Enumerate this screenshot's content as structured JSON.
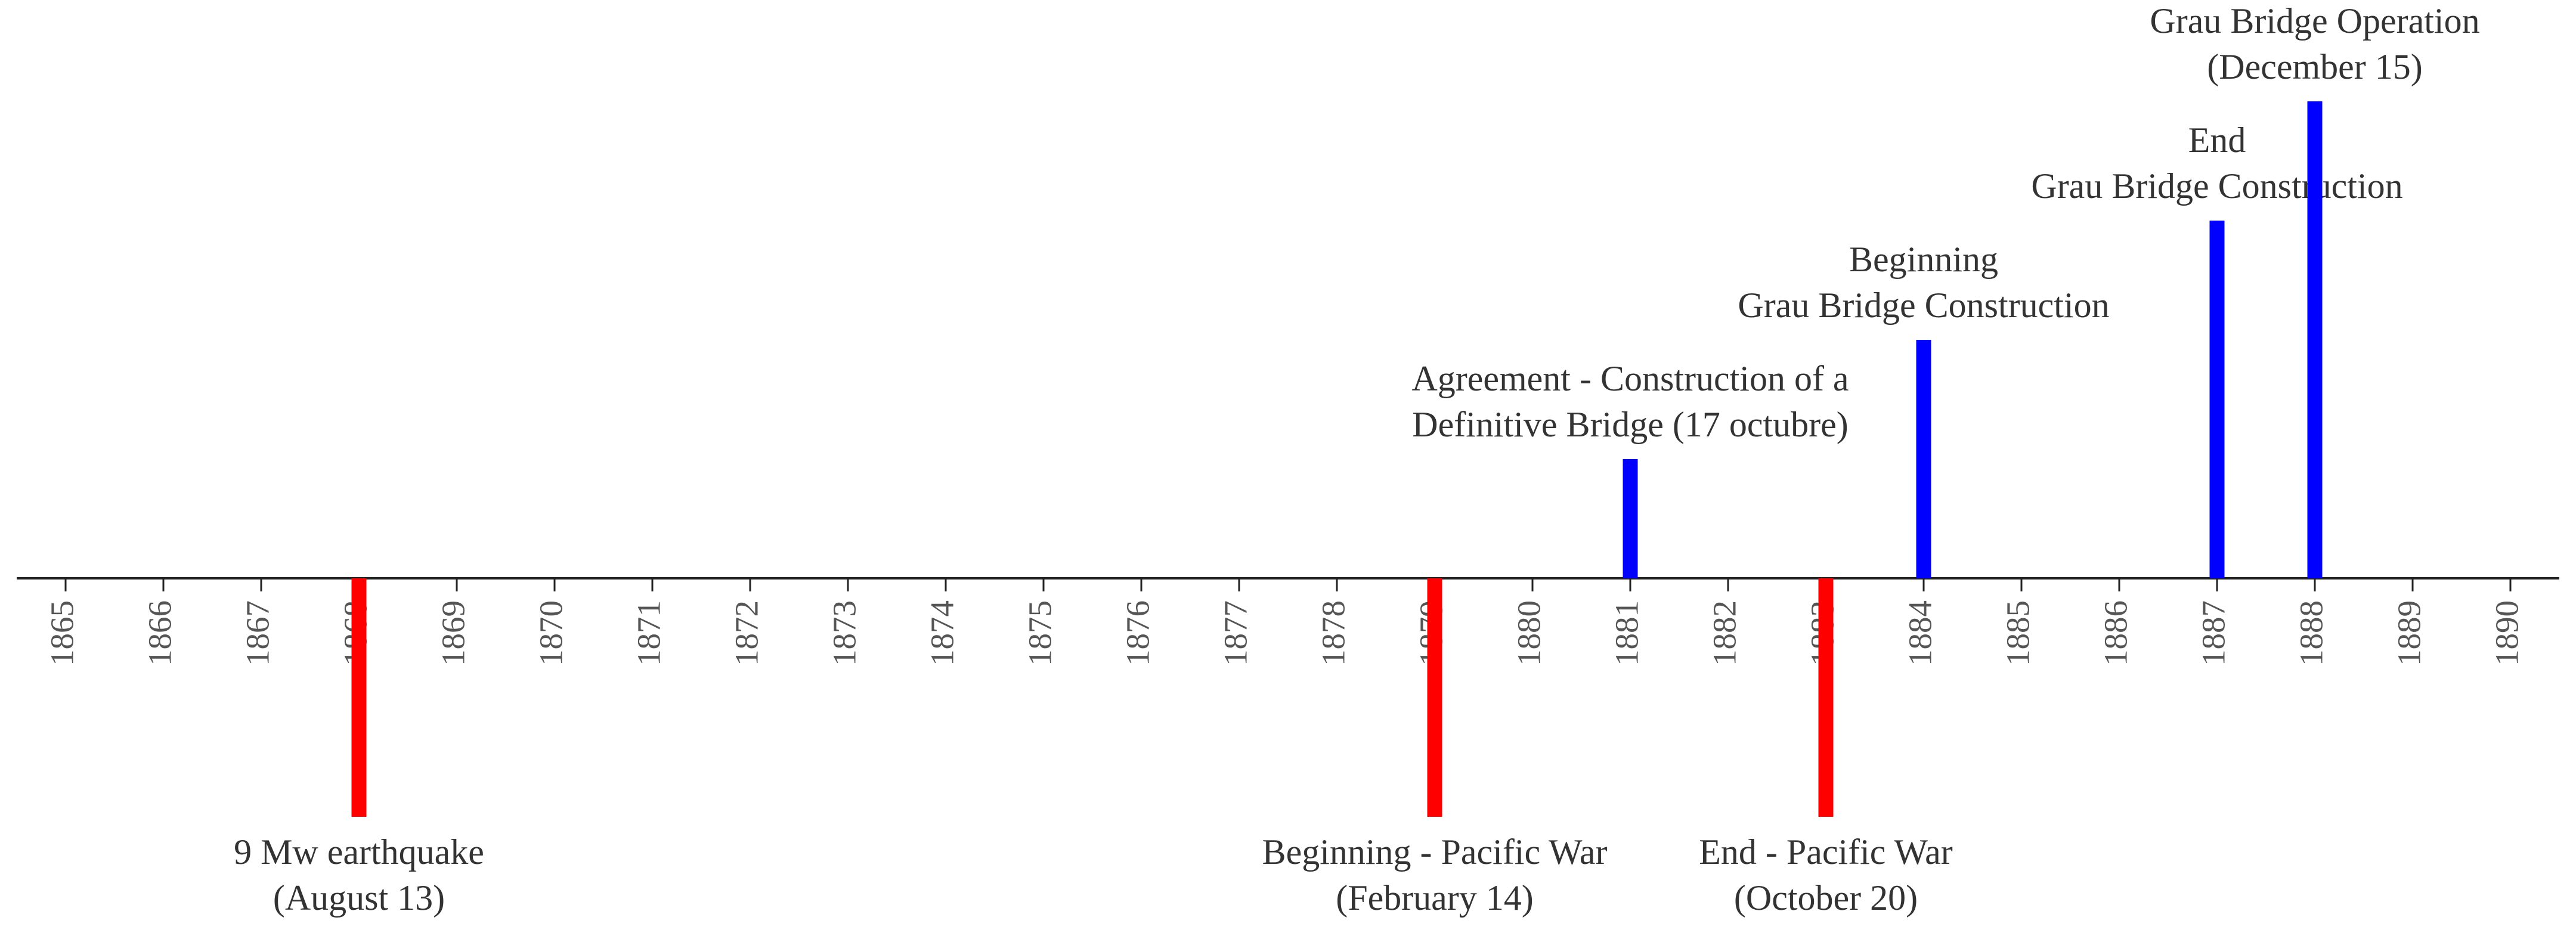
{
  "chart_data": {
    "type": "timeline",
    "xlim": [
      1864.5,
      1890.5
    ],
    "xticks": [
      1865,
      1866,
      1867,
      1868,
      1869,
      1870,
      1871,
      1872,
      1873,
      1874,
      1875,
      1876,
      1877,
      1878,
      1879,
      1880,
      1881,
      1882,
      1883,
      1884,
      1885,
      1886,
      1887,
      1888,
      1889,
      1890
    ],
    "x": [
      1868,
      1879,
      1883,
      1881,
      1884,
      1887,
      1888
    ],
    "values": [
      -2,
      -2,
      -2,
      1,
      2,
      3,
      4
    ],
    "colors": [
      "#ff0000",
      "#ff0000",
      "#ff0000",
      "#0000ff",
      "#0000ff",
      "#0000ff",
      "#0000ff"
    ],
    "labels": [
      [
        "9 Mw earthquake",
        "(August 13)"
      ],
      [
        "Beginning - Pacific War",
        "(February 14)"
      ],
      [
        "End - Pacific War",
        "(October 20)"
      ],
      [
        "Agreement - Construction of a",
        "Definitive Bridge (17 octubre)"
      ],
      [
        "Beginning",
        "Grau Bridge Construction"
      ],
      [
        "End",
        "Grau Bridge Construction"
      ],
      [
        "Grau Bridge Operation",
        "(December 15)"
      ]
    ]
  }
}
